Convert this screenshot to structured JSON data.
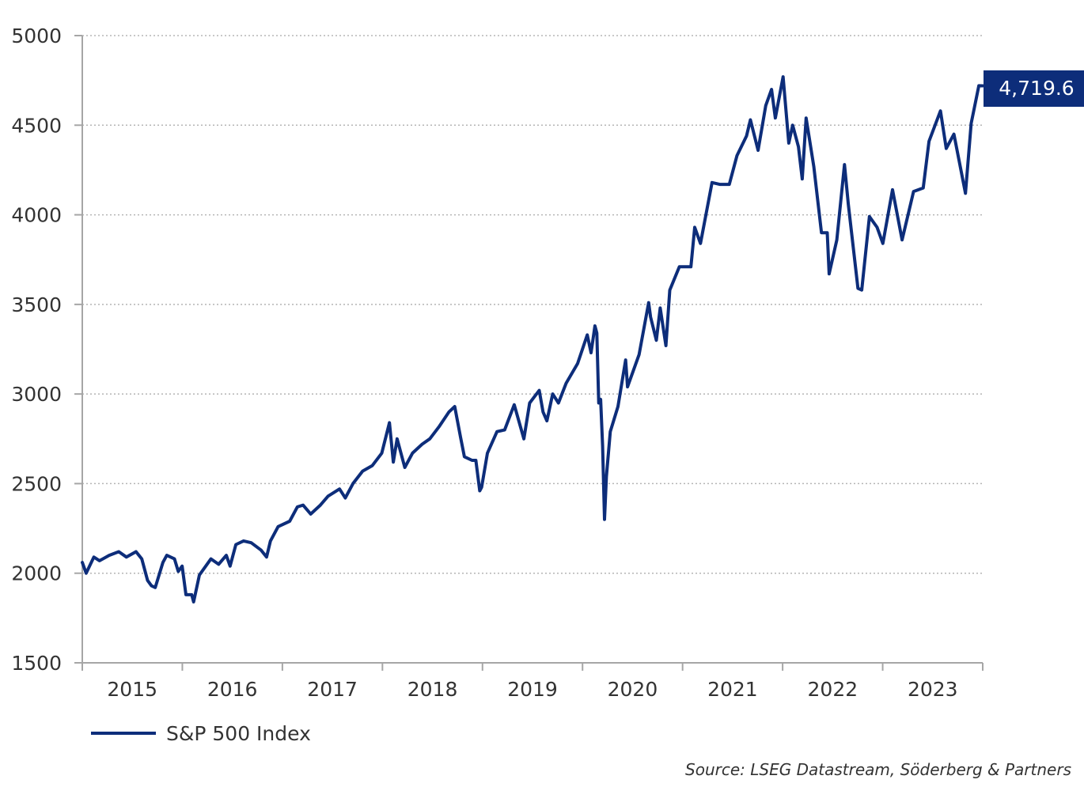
{
  "chart_data": {
    "type": "line",
    "title": "",
    "xlabel": "",
    "ylabel": "",
    "ylim": [
      1500,
      5000
    ],
    "xlim": [
      "2015-01-02",
      "2023-12-29"
    ],
    "yticks": [
      1500,
      2000,
      2500,
      3000,
      3500,
      4000,
      4500,
      5000
    ],
    "ytick_labels": [
      "1500",
      "2000",
      "2500",
      "3000",
      "3500",
      "4000",
      "4500",
      "5000"
    ],
    "xtick_labels": [
      "2015",
      "2016",
      "2017",
      "2018",
      "2019",
      "2020",
      "2021",
      "2022",
      "2023"
    ],
    "grid": "horizontal-dotted",
    "legend_position": "bottom-left",
    "last_value_label": "4,719.6",
    "series": [
      {
        "name": "S&P 500 Index",
        "color": "#0d2d7a",
        "points": [
          [
            "2015-01-02",
            2060
          ],
          [
            "2015-01-16",
            2000
          ],
          [
            "2015-02-13",
            2090
          ],
          [
            "2015-03-06",
            2070
          ],
          [
            "2015-04-10",
            2100
          ],
          [
            "2015-05-15",
            2120
          ],
          [
            "2015-06-12",
            2090
          ],
          [
            "2015-07-17",
            2120
          ],
          [
            "2015-08-07",
            2080
          ],
          [
            "2015-08-28",
            1960
          ],
          [
            "2015-09-11",
            1930
          ],
          [
            "2015-09-25",
            1920
          ],
          [
            "2015-10-23",
            2060
          ],
          [
            "2015-11-06",
            2100
          ],
          [
            "2015-12-04",
            2080
          ],
          [
            "2015-12-18",
            2010
          ],
          [
            "2016-01-01",
            2040
          ],
          [
            "2016-01-15",
            1880
          ],
          [
            "2016-02-05",
            1880
          ],
          [
            "2016-02-12",
            1840
          ],
          [
            "2016-03-04",
            1990
          ],
          [
            "2016-04-15",
            2080
          ],
          [
            "2016-05-13",
            2050
          ],
          [
            "2016-06-10",
            2100
          ],
          [
            "2016-06-24",
            2040
          ],
          [
            "2016-07-15",
            2160
          ],
          [
            "2016-08-12",
            2180
          ],
          [
            "2016-09-09",
            2170
          ],
          [
            "2016-10-14",
            2130
          ],
          [
            "2016-11-04",
            2090
          ],
          [
            "2016-11-18",
            2180
          ],
          [
            "2016-12-16",
            2260
          ],
          [
            "2017-01-27",
            2290
          ],
          [
            "2017-02-24",
            2370
          ],
          [
            "2017-03-17",
            2380
          ],
          [
            "2017-04-14",
            2330
          ],
          [
            "2017-05-19",
            2380
          ],
          [
            "2017-06-16",
            2430
          ],
          [
            "2017-07-28",
            2470
          ],
          [
            "2017-08-18",
            2420
          ],
          [
            "2017-09-15",
            2500
          ],
          [
            "2017-10-20",
            2570
          ],
          [
            "2017-11-24",
            2600
          ],
          [
            "2017-12-29",
            2670
          ],
          [
            "2018-01-26",
            2840
          ],
          [
            "2018-02-09",
            2620
          ],
          [
            "2018-02-23",
            2750
          ],
          [
            "2018-03-23",
            2590
          ],
          [
            "2018-04-20",
            2670
          ],
          [
            "2018-05-25",
            2720
          ],
          [
            "2018-06-22",
            2750
          ],
          [
            "2018-07-27",
            2820
          ],
          [
            "2018-08-31",
            2900
          ],
          [
            "2018-09-21",
            2930
          ],
          [
            "2018-10-12",
            2760
          ],
          [
            "2018-10-26",
            2650
          ],
          [
            "2018-11-23",
            2630
          ],
          [
            "2018-12-07",
            2630
          ],
          [
            "2018-12-21",
            2460
          ],
          [
            "2018-12-28",
            2480
          ],
          [
            "2019-01-18",
            2670
          ],
          [
            "2019-02-22",
            2790
          ],
          [
            "2019-03-22",
            2800
          ],
          [
            "2019-04-26",
            2940
          ],
          [
            "2019-05-31",
            2750
          ],
          [
            "2019-06-21",
            2950
          ],
          [
            "2019-07-26",
            3020
          ],
          [
            "2019-08-09",
            2900
          ],
          [
            "2019-08-23",
            2850
          ],
          [
            "2019-09-13",
            3000
          ],
          [
            "2019-10-04",
            2950
          ],
          [
            "2019-11-01",
            3060
          ],
          [
            "2019-12-13",
            3170
          ],
          [
            "2020-01-17",
            3330
          ],
          [
            "2020-01-31",
            3230
          ],
          [
            "2020-02-14",
            3380
          ],
          [
            "2020-02-21",
            3340
          ],
          [
            "2020-02-28",
            2950
          ],
          [
            "2020-03-06",
            2970
          ],
          [
            "2020-03-13",
            2710
          ],
          [
            "2020-03-20",
            2300
          ],
          [
            "2020-03-27",
            2540
          ],
          [
            "2020-04-10",
            2790
          ],
          [
            "2020-05-08",
            2930
          ],
          [
            "2020-06-05",
            3190
          ],
          [
            "2020-06-12",
            3040
          ],
          [
            "2020-07-24",
            3220
          ],
          [
            "2020-08-28",
            3510
          ],
          [
            "2020-09-04",
            3430
          ],
          [
            "2020-09-25",
            3300
          ],
          [
            "2020-10-09",
            3480
          ],
          [
            "2020-10-30",
            3270
          ],
          [
            "2020-11-13",
            3580
          ],
          [
            "2020-12-18",
            3710
          ],
          [
            "2021-01-29",
            3710
          ],
          [
            "2021-02-12",
            3930
          ],
          [
            "2021-03-05",
            3840
          ],
          [
            "2021-04-16",
            4180
          ],
          [
            "2021-05-14",
            4170
          ],
          [
            "2021-06-18",
            4170
          ],
          [
            "2021-07-16",
            4330
          ],
          [
            "2021-08-20",
            4440
          ],
          [
            "2021-09-03",
            4530
          ],
          [
            "2021-10-01",
            4360
          ],
          [
            "2021-10-29",
            4610
          ],
          [
            "2021-11-19",
            4700
          ],
          [
            "2021-12-03",
            4540
          ],
          [
            "2021-12-31",
            4770
          ],
          [
            "2022-01-21",
            4400
          ],
          [
            "2022-02-04",
            4500
          ],
          [
            "2022-02-25",
            4380
          ],
          [
            "2022-03-11",
            4200
          ],
          [
            "2022-03-25",
            4540
          ],
          [
            "2022-04-22",
            4270
          ],
          [
            "2022-05-20",
            3900
          ],
          [
            "2022-06-10",
            3900
          ],
          [
            "2022-06-17",
            3670
          ],
          [
            "2022-07-15",
            3860
          ],
          [
            "2022-08-12",
            4280
          ],
          [
            "2022-08-26",
            4060
          ],
          [
            "2022-09-30",
            3590
          ],
          [
            "2022-10-14",
            3580
          ],
          [
            "2022-11-11",
            3990
          ],
          [
            "2022-12-09",
            3930
          ],
          [
            "2022-12-30",
            3840
          ],
          [
            "2023-02-03",
            4140
          ],
          [
            "2023-03-10",
            3860
          ],
          [
            "2023-04-21",
            4130
          ],
          [
            "2023-05-26",
            4150
          ],
          [
            "2023-06-16",
            4410
          ],
          [
            "2023-07-28",
            4580
          ],
          [
            "2023-08-18",
            4370
          ],
          [
            "2023-09-15",
            4450
          ],
          [
            "2023-10-27",
            4120
          ],
          [
            "2023-11-17",
            4510
          ],
          [
            "2023-12-15",
            4720
          ],
          [
            "2023-12-29",
            4719.6
          ]
        ]
      }
    ],
    "source": "Source: LSEG Datastream, Söderberg & Partners"
  }
}
